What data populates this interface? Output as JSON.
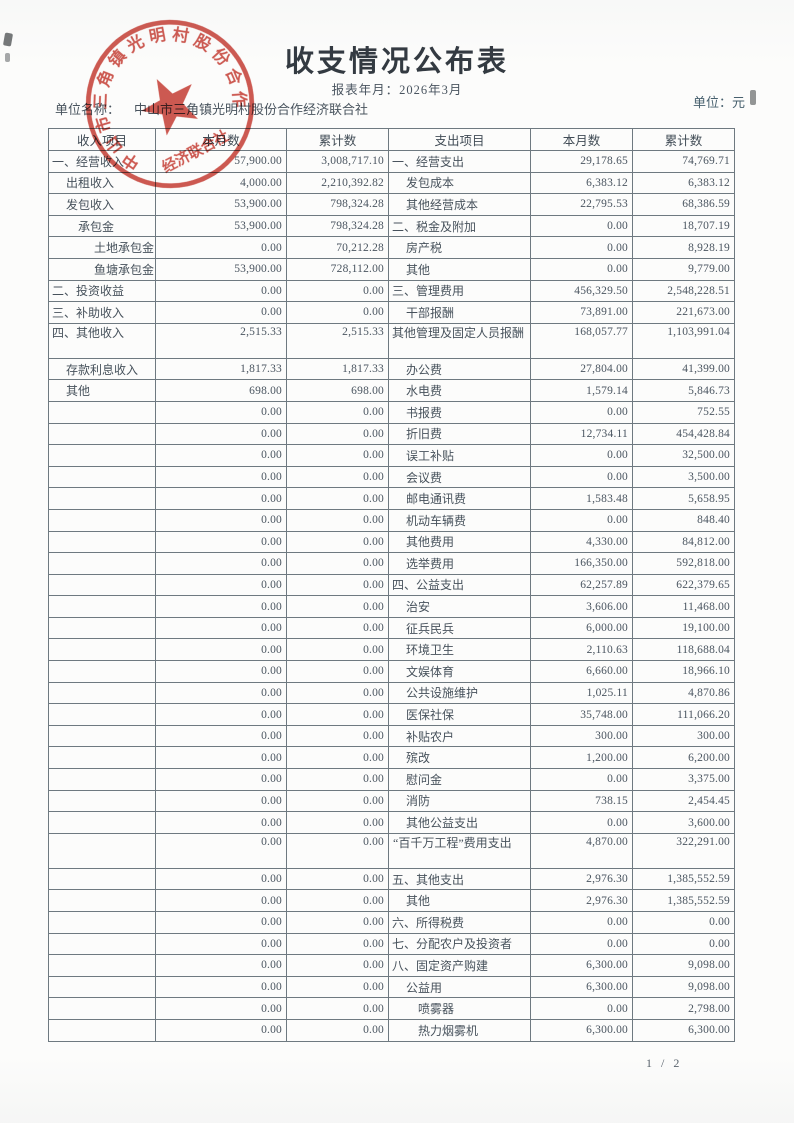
{
  "page": {
    "title": "收支情况公布表",
    "subtitle": "报表年月：2026年3月",
    "unit_name_label": "单位名称：",
    "unit_name": "中山市三角镇光明村股份合作经济联合社",
    "unit_label": "单位：元",
    "page_indicator": "1 / 2"
  },
  "stamp": {
    "ring_text": "中山市三角镇光明村股份合作",
    "bottom_text": "经济联合社",
    "color": "#c5352b"
  },
  "table": {
    "headers": [
      "收入项目",
      "本月数",
      "累计数",
      "支出项目",
      "本月数",
      "累计数"
    ],
    "rows": [
      {
        "il": "一、经营收入",
        "ii": 0,
        "im": "57,900.00",
        "it": "3,008,717.10",
        "el": "一、经营支出",
        "ei": 0,
        "em": "29,178.65",
        "et": "74,769.71"
      },
      {
        "il": "出租收入",
        "ii": 1,
        "im": "4,000.00",
        "it": "2,210,392.82",
        "el": "发包成本",
        "ei": 1,
        "em": "6,383.12",
        "et": "6,383.12"
      },
      {
        "il": "发包收入",
        "ii": 1,
        "im": "53,900.00",
        "it": "798,324.28",
        "el": "其他经营成本",
        "ei": 1,
        "em": "22,795.53",
        "et": "68,386.59"
      },
      {
        "il": "承包金",
        "ii": 2,
        "im": "53,900.00",
        "it": "798,324.28",
        "el": "二、税金及附加",
        "ei": 0,
        "em": "0.00",
        "et": "18,707.19"
      },
      {
        "il": "土地承包金",
        "ii": 3,
        "im": "0.00",
        "it": "70,212.28",
        "el": "房产税",
        "ei": 1,
        "em": "0.00",
        "et": "8,928.19"
      },
      {
        "il": "鱼塘承包金",
        "ii": 3,
        "im": "53,900.00",
        "it": "728,112.00",
        "el": "其他",
        "ei": 1,
        "em": "0.00",
        "et": "9,779.00"
      },
      {
        "il": "二、投资收益",
        "ii": 0,
        "im": "0.00",
        "it": "0.00",
        "el": "三、管理费用",
        "ei": 0,
        "em": "456,329.50",
        "et": "2,548,228.51"
      },
      {
        "il": "三、补助收入",
        "ii": 0,
        "im": "0.00",
        "it": "0.00",
        "el": "干部报酬",
        "ei": 1,
        "em": "73,891.00",
        "et": "221,673.00"
      },
      {
        "il": "四、其他收入",
        "ii": 0,
        "im": "2,515.33",
        "it": "2,515.33",
        "el": "其他管理及固定人员报酬",
        "ei": 1,
        "em": "168,057.77",
        "et": "1,103,991.04",
        "h2": true
      },
      {
        "il": "存款利息收入",
        "ii": 1,
        "im": "1,817.33",
        "it": "1,817.33",
        "el": "办公费",
        "ei": 1,
        "em": "27,804.00",
        "et": "41,399.00"
      },
      {
        "il": "其他",
        "ii": 1,
        "im": "698.00",
        "it": "698.00",
        "el": "水电费",
        "ei": 1,
        "em": "1,579.14",
        "et": "5,846.73"
      },
      {
        "il": "",
        "ii": 0,
        "im": "0.00",
        "it": "0.00",
        "el": "书报费",
        "ei": 1,
        "em": "0.00",
        "et": "752.55"
      },
      {
        "il": "",
        "ii": 0,
        "im": "0.00",
        "it": "0.00",
        "el": "折旧费",
        "ei": 1,
        "em": "12,734.11",
        "et": "454,428.84"
      },
      {
        "il": "",
        "ii": 0,
        "im": "0.00",
        "it": "0.00",
        "el": "误工补贴",
        "ei": 1,
        "em": "0.00",
        "et": "32,500.00"
      },
      {
        "il": "",
        "ii": 0,
        "im": "0.00",
        "it": "0.00",
        "el": "会议费",
        "ei": 1,
        "em": "0.00",
        "et": "3,500.00"
      },
      {
        "il": "",
        "ii": 0,
        "im": "0.00",
        "it": "0.00",
        "el": "邮电通讯费",
        "ei": 1,
        "em": "1,583.48",
        "et": "5,658.95"
      },
      {
        "il": "",
        "ii": 0,
        "im": "0.00",
        "it": "0.00",
        "el": "机动车辆费",
        "ei": 1,
        "em": "0.00",
        "et": "848.40"
      },
      {
        "il": "",
        "ii": 0,
        "im": "0.00",
        "it": "0.00",
        "el": "其他费用",
        "ei": 1,
        "em": "4,330.00",
        "et": "84,812.00"
      },
      {
        "il": "",
        "ii": 0,
        "im": "0.00",
        "it": "0.00",
        "el": "选举费用",
        "ei": 1,
        "em": "166,350.00",
        "et": "592,818.00"
      },
      {
        "il": "",
        "ii": 0,
        "im": "0.00",
        "it": "0.00",
        "el": "四、公益支出",
        "ei": 0,
        "em": "62,257.89",
        "et": "622,379.65"
      },
      {
        "il": "",
        "ii": 0,
        "im": "0.00",
        "it": "0.00",
        "el": "治安",
        "ei": 1,
        "em": "3,606.00",
        "et": "11,468.00"
      },
      {
        "il": "",
        "ii": 0,
        "im": "0.00",
        "it": "0.00",
        "el": "征兵民兵",
        "ei": 1,
        "em": "6,000.00",
        "et": "19,100.00"
      },
      {
        "il": "",
        "ii": 0,
        "im": "0.00",
        "it": "0.00",
        "el": "环境卫生",
        "ei": 1,
        "em": "2,110.63",
        "et": "118,688.04"
      },
      {
        "il": "",
        "ii": 0,
        "im": "0.00",
        "it": "0.00",
        "el": "文娱体育",
        "ei": 1,
        "em": "6,660.00",
        "et": "18,966.10"
      },
      {
        "il": "",
        "ii": 0,
        "im": "0.00",
        "it": "0.00",
        "el": "公共设施维护",
        "ei": 1,
        "em": "1,025.11",
        "et": "4,870.86"
      },
      {
        "il": "",
        "ii": 0,
        "im": "0.00",
        "it": "0.00",
        "el": "医保社保",
        "ei": 1,
        "em": "35,748.00",
        "et": "111,066.20"
      },
      {
        "il": "",
        "ii": 0,
        "im": "0.00",
        "it": "0.00",
        "el": "补贴农户",
        "ei": 1,
        "em": "300.00",
        "et": "300.00"
      },
      {
        "il": "",
        "ii": 0,
        "im": "0.00",
        "it": "0.00",
        "el": "殡改",
        "ei": 1,
        "em": "1,200.00",
        "et": "6,200.00"
      },
      {
        "il": "",
        "ii": 0,
        "im": "0.00",
        "it": "0.00",
        "el": "慰问金",
        "ei": 1,
        "em": "0.00",
        "et": "3,375.00"
      },
      {
        "il": "",
        "ii": 0,
        "im": "0.00",
        "it": "0.00",
        "el": "消防",
        "ei": 1,
        "em": "738.15",
        "et": "2,454.45"
      },
      {
        "il": "",
        "ii": 0,
        "im": "0.00",
        "it": "0.00",
        "el": "其他公益支出",
        "ei": 1,
        "em": "0.00",
        "et": "3,600.00"
      },
      {
        "il": "",
        "ii": 0,
        "im": "0.00",
        "it": "0.00",
        "el": "“百千万工程”费用支出",
        "ei": 2,
        "em": "4,870.00",
        "et": "322,291.00",
        "h2": true
      },
      {
        "il": "",
        "ii": 0,
        "im": "0.00",
        "it": "0.00",
        "el": "五、其他支出",
        "ei": 0,
        "em": "2,976.30",
        "et": "1,385,552.59"
      },
      {
        "il": "",
        "ii": 0,
        "im": "0.00",
        "it": "0.00",
        "el": "其他",
        "ei": 1,
        "em": "2,976.30",
        "et": "1,385,552.59"
      },
      {
        "il": "",
        "ii": 0,
        "im": "0.00",
        "it": "0.00",
        "el": "六、所得税费",
        "ei": 0,
        "em": "0.00",
        "et": "0.00"
      },
      {
        "il": "",
        "ii": 0,
        "im": "0.00",
        "it": "0.00",
        "el": "七、分配农户及投资者",
        "ei": 0,
        "em": "0.00",
        "et": "0.00"
      },
      {
        "il": "",
        "ii": 0,
        "im": "0.00",
        "it": "0.00",
        "el": "八、固定资产购建",
        "ei": 0,
        "em": "6,300.00",
        "et": "9,098.00"
      },
      {
        "il": "",
        "ii": 0,
        "im": "0.00",
        "it": "0.00",
        "el": "公益用",
        "ei": 1,
        "em": "6,300.00",
        "et": "9,098.00"
      },
      {
        "il": "",
        "ii": 0,
        "im": "0.00",
        "it": "0.00",
        "el": "喷雾器",
        "ei": 2,
        "em": "0.00",
        "et": "2,798.00"
      },
      {
        "il": "",
        "ii": 0,
        "im": "0.00",
        "it": "0.00",
        "el": "热力烟雾机",
        "ei": 2,
        "em": "6,300.00",
        "et": "6,300.00"
      }
    ]
  }
}
